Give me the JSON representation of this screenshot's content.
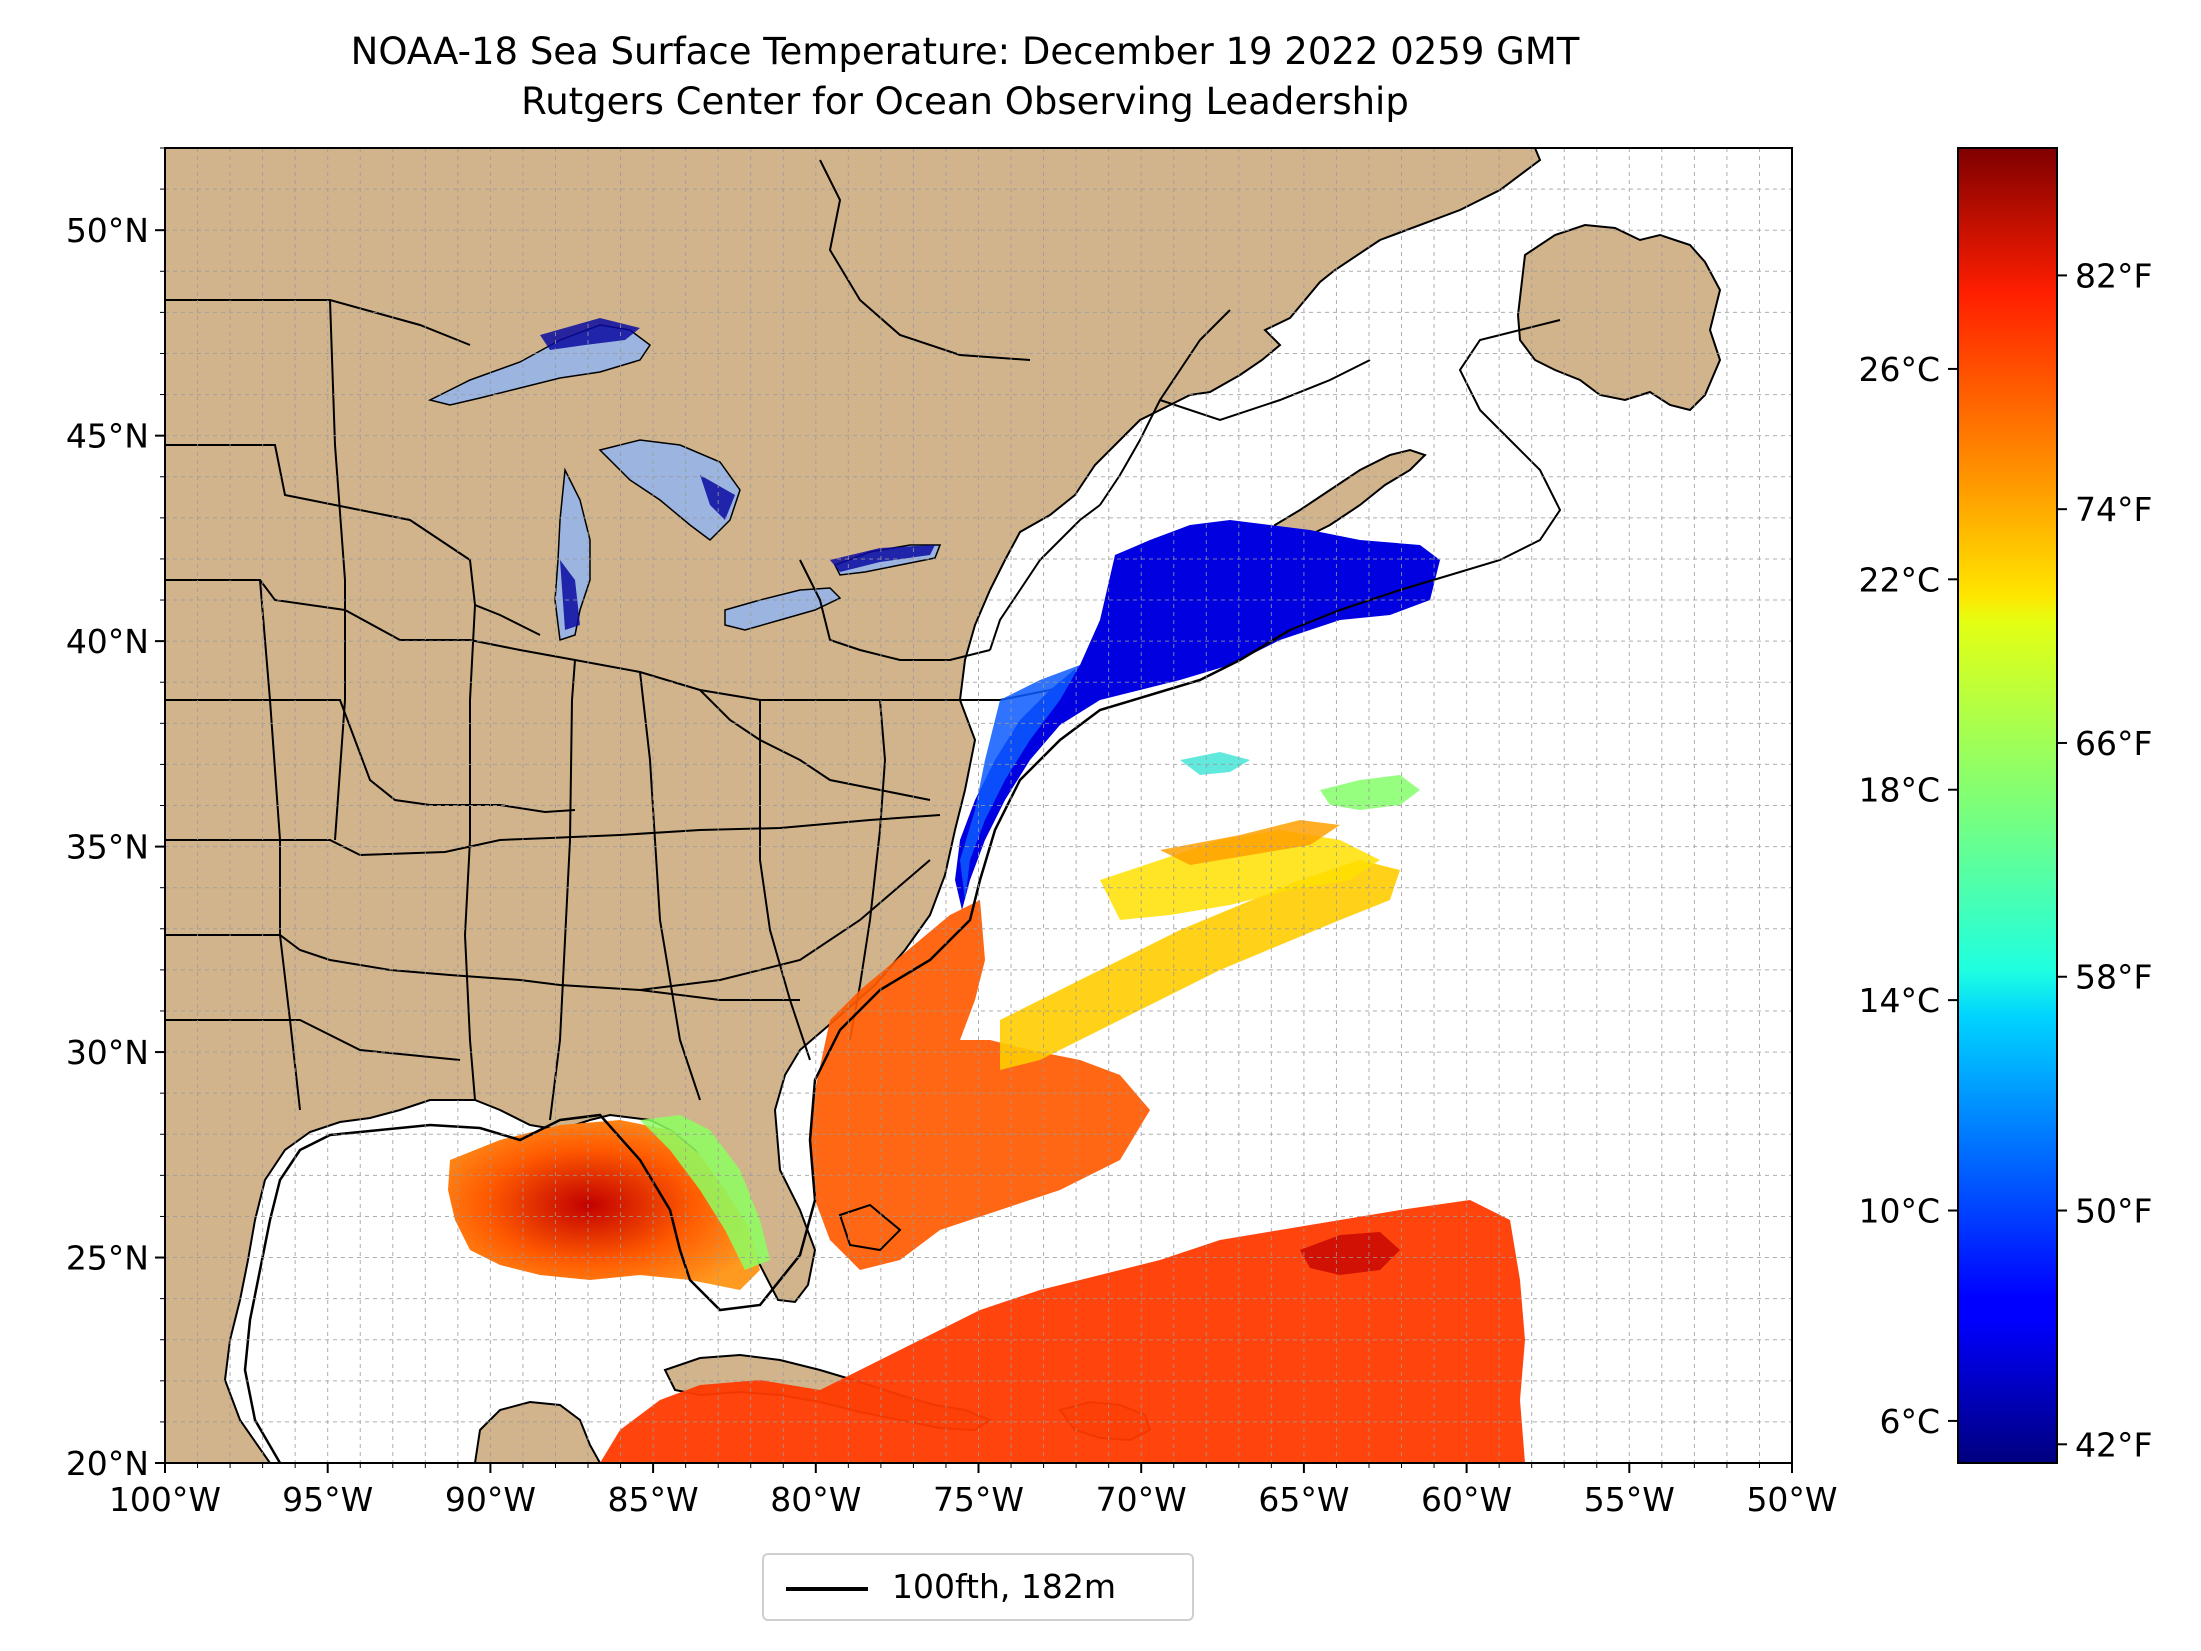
{
  "title": "NOAA-18 Sea Surface Temperature: December 19 2022 0259 GMT",
  "subtitle": "Rutgers Center for Ocean Observing Leadership",
  "map": {
    "projection": "plate-carree",
    "lon_range": [
      -100,
      -50
    ],
    "lat_range": [
      20,
      52
    ],
    "grid": "dashed-1-degree",
    "land_color": "#d2b48c",
    "lake_color": "#9bb4e0",
    "ocean_nodata_color": "#ffffff",
    "lon_ticks": [
      "100°W",
      "95°W",
      "90°W",
      "85°W",
      "80°W",
      "75°W",
      "70°W",
      "65°W",
      "60°W",
      "55°W",
      "50°W"
    ],
    "lat_ticks": [
      "20°N",
      "25°N",
      "30°N",
      "35°N",
      "40°N",
      "45°N",
      "50°N"
    ]
  },
  "colorbar": {
    "colormap": "jet",
    "celsius_ticks": [
      "6°C",
      "10°C",
      "14°C",
      "18°C",
      "22°C",
      "26°C"
    ],
    "fahrenheit_ticks": [
      "42°F",
      "50°F",
      "58°F",
      "66°F",
      "74°F",
      "82°F"
    ],
    "range_c": [
      5.2,
      30.2
    ]
  },
  "legend": {
    "label": "100fth, 182m",
    "line_color": "#000000"
  }
}
